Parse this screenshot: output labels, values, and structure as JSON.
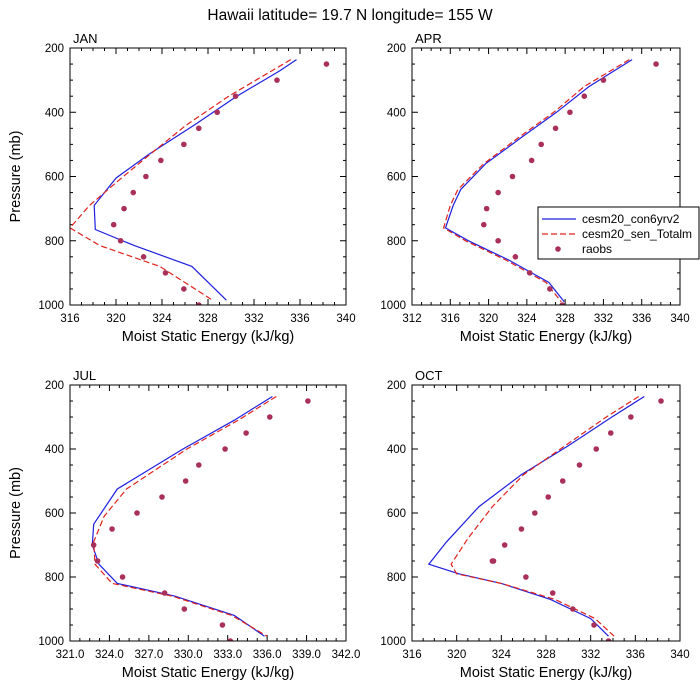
{
  "title": "Hawaii  latitude= 19.7 N longitude= 155 W",
  "chart_data": [
    {
      "type": "line",
      "panel_title": "JAN",
      "xlabel": "Moist Static Energy (kJ/kg)",
      "ylabel": "Pressure (mb)",
      "xlim": [
        316,
        340
      ],
      "ylim": [
        1000,
        200
      ],
      "y_reversed": true,
      "xticks": [
        "316",
        "320",
        "324",
        "328",
        "332",
        "336",
        "340"
      ],
      "xtick_values": [
        316,
        320,
        324,
        328,
        332,
        336,
        340
      ],
      "yticks": [
        "200",
        "400",
        "600",
        "800",
        "1000"
      ],
      "ytick_values": [
        200,
        400,
        600,
        800,
        1000
      ],
      "series": [
        {
          "style": "solid",
          "color": "#1f1fe0",
          "x": [
            335.7,
            334.2,
            330.5,
            326.8,
            322.9,
            320.0,
            318.1,
            318.2,
            321.6,
            326.6,
            329.6
          ],
          "y": [
            236,
            272,
            350,
            440,
            530,
            605,
            690,
            765,
            815,
            880,
            985
          ]
        },
        {
          "style": "dashed",
          "color": "#e0221c",
          "x": [
            335.2,
            333.5,
            329.8,
            326.1,
            323.0,
            320.3,
            317.7,
            316.0,
            318.6,
            323.8,
            328.4
          ],
          "y": [
            236,
            272,
            350,
            440,
            530,
            610,
            690,
            760,
            815,
            880,
            985
          ]
        },
        {
          "style": "points",
          "color": "#a8305a",
          "x": [
            338.3,
            334.0,
            330.4,
            328.8,
            327.2,
            325.9,
            323.9,
            322.6,
            321.5,
            320.7,
            319.8,
            320.4,
            322.4,
            324.3,
            325.9,
            327.2
          ],
          "y": [
            250,
            300,
            350,
            400,
            450,
            500,
            550,
            600,
            650,
            700,
            750,
            800,
            850,
            900,
            950,
            1000
          ]
        }
      ]
    },
    {
      "type": "line",
      "panel_title": "APR",
      "xlabel": "Moist Static Energy (kJ/kg)",
      "ylabel": "",
      "xlim": [
        312,
        340
      ],
      "ylim": [
        1000,
        200
      ],
      "y_reversed": true,
      "xticks": [
        "312",
        "316",
        "320",
        "324",
        "328",
        "332",
        "336",
        "340"
      ],
      "xtick_values": [
        312,
        316,
        320,
        324,
        328,
        332,
        336,
        340
      ],
      "yticks": [
        "200",
        "400",
        "600",
        "800",
        "1000"
      ],
      "ytick_values": [
        200,
        400,
        600,
        800,
        1000
      ],
      "series": [
        {
          "style": "solid",
          "color": "#1f1fe0",
          "x": [
            335.0,
            330.5,
            327.1,
            323.6,
            319.7,
            317.1,
            316.3,
            315.5,
            317.9,
            322.1,
            326.3,
            327.9
          ],
          "y": [
            236,
            320,
            400,
            475,
            560,
            640,
            690,
            760,
            800,
            860,
            930,
            990
          ]
        },
        {
          "style": "dashed",
          "color": "#e0221c",
          "x": [
            334.7,
            330.0,
            326.8,
            323.3,
            319.5,
            316.8,
            316.0,
            315.3,
            317.6,
            321.8,
            326.0,
            327.6
          ],
          "y": [
            236,
            320,
            400,
            475,
            560,
            640,
            690,
            760,
            800,
            860,
            930,
            990
          ]
        },
        {
          "style": "points",
          "color": "#a8305a",
          "x": [
            337.5,
            332.0,
            330.0,
            328.5,
            327.0,
            325.5,
            324.5,
            322.5,
            321.0,
            319.8,
            319.5,
            321.0,
            322.8,
            324.3,
            326.4,
            327.7
          ],
          "y": [
            250,
            300,
            350,
            400,
            450,
            500,
            550,
            600,
            650,
            700,
            750,
            800,
            850,
            900,
            950,
            1000
          ]
        }
      ]
    },
    {
      "type": "line",
      "panel_title": "JUL",
      "xlabel": "Moist Static Energy (kJ/kg)",
      "ylabel": "Pressure (mb)",
      "xlim": [
        321,
        342
      ],
      "ylim": [
        1000,
        200
      ],
      "y_reversed": true,
      "xticks": [
        "321.0",
        "324.0",
        "327.0",
        "330.0",
        "333.0",
        "336.0",
        "339.0",
        "342.0"
      ],
      "xtick_values": [
        321,
        324,
        327,
        330,
        333,
        336,
        339,
        342
      ],
      "yticks": [
        "200",
        "400",
        "600",
        "800",
        "1000"
      ],
      "ytick_values": [
        200,
        400,
        600,
        800,
        1000
      ],
      "series": [
        {
          "style": "solid",
          "color": "#1f1fe0",
          "x": [
            336.4,
            333.5,
            329.6,
            324.6,
            322.8,
            322.7,
            323.2,
            324.6,
            329.0,
            333.5,
            335.8
          ],
          "y": [
            236,
            310,
            400,
            525,
            635,
            700,
            760,
            820,
            860,
            920,
            985
          ]
        },
        {
          "style": "dashed",
          "color": "#e0221c",
          "x": [
            336.7,
            333.8,
            329.9,
            325.3,
            323.6,
            322.8,
            322.9,
            324.2,
            328.8,
            333.3,
            336.0
          ],
          "y": [
            236,
            310,
            400,
            525,
            610,
            690,
            760,
            820,
            860,
            920,
            985
          ]
        },
        {
          "style": "points",
          "color": "#a8305a",
          "x": [
            339.1,
            336.2,
            334.4,
            332.8,
            330.8,
            329.8,
            328.0,
            326.1,
            324.2,
            322.8,
            323.1,
            325.0,
            328.2,
            329.7,
            332.6,
            333.2
          ],
          "y": [
            250,
            300,
            350,
            400,
            450,
            500,
            550,
            600,
            650,
            700,
            750,
            800,
            850,
            900,
            950,
            1000
          ]
        }
      ]
    },
    {
      "type": "line",
      "panel_title": "OCT",
      "xlabel": "Moist Static Energy (kJ/kg)",
      "ylabel": "",
      "xlim": [
        316,
        340
      ],
      "ylim": [
        1000,
        200
      ],
      "y_reversed": true,
      "xticks": [
        "316",
        "320",
        "324",
        "328",
        "332",
        "336",
        "340"
      ],
      "xtick_values": [
        316,
        320,
        324,
        328,
        332,
        336,
        340
      ],
      "yticks": [
        "200",
        "400",
        "600",
        "800",
        "1000"
      ],
      "ytick_values": [
        200,
        400,
        600,
        800,
        1000
      ],
      "series": [
        {
          "style": "solid",
          "color": "#1f1fe0",
          "x": [
            336.8,
            333.9,
            330.0,
            325.8,
            322.0,
            319.1,
            317.5,
            320.2,
            324.0,
            328.4,
            332.0,
            333.6
          ],
          "y": [
            236,
            300,
            390,
            480,
            580,
            690,
            760,
            790,
            820,
            870,
            930,
            985
          ]
        },
        {
          "style": "dashed",
          "color": "#e0221c",
          "x": [
            336.3,
            333.4,
            329.7,
            326.0,
            323.2,
            321.0,
            319.5,
            320.0,
            324.0,
            328.8,
            332.4,
            334.1
          ],
          "y": [
            236,
            300,
            390,
            480,
            580,
            680,
            760,
            790,
            820,
            870,
            930,
            985
          ]
        },
        {
          "style": "points",
          "color": "#a8305a",
          "x": [
            338.3,
            335.6,
            333.8,
            332.5,
            331.0,
            329.5,
            328.2,
            327.0,
            325.8,
            324.3,
            323.2,
            323.3,
            326.2,
            328.6,
            330.4,
            332.3,
            333.6
          ],
          "y": [
            250,
            300,
            350,
            400,
            450,
            500,
            550,
            600,
            650,
            700,
            750,
            750,
            800,
            850,
            900,
            950,
            1000
          ]
        }
      ]
    }
  ],
  "legend": {
    "placement": "right of APR panel",
    "entries": [
      {
        "label": "cesm20_con6yrv2",
        "style": "solid",
        "color": "#1f1fe0"
      },
      {
        "label": "cesm20_sen_Totalm",
        "style": "dashed",
        "color": "#e0221c"
      },
      {
        "label": "raobs",
        "style": "points",
        "color": "#a8305a"
      }
    ]
  }
}
